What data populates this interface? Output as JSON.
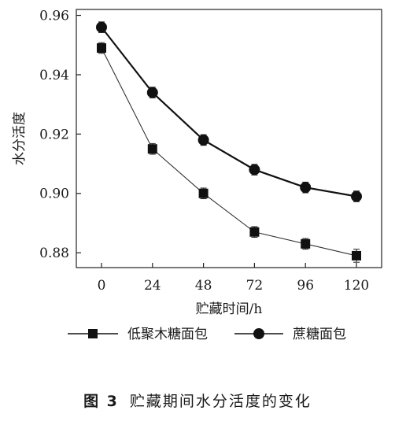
{
  "chart_data": {
    "type": "line",
    "title": "",
    "xlabel": "贮藏时间/h",
    "ylabel": "水分活度",
    "x": [
      0,
      24,
      48,
      72,
      96,
      120
    ],
    "xticks": [
      "0",
      "24",
      "48",
      "72",
      "96",
      "120"
    ],
    "yticks": [
      "0.88",
      "0.90",
      "0.92",
      "0.94",
      "0.96"
    ],
    "ylim": [
      0.875,
      0.962
    ],
    "grid": false,
    "legend_position": "bottom",
    "series": [
      {
        "name": "低聚木糖面包",
        "marker": "square",
        "values": [
          0.949,
          0.915,
          0.9,
          0.887,
          0.883,
          0.879
        ],
        "errors": [
          0.0018,
          0.0018,
          0.0018,
          0.0018,
          0.0018,
          0.0022
        ]
      },
      {
        "name": "蔗糖面包",
        "marker": "circle",
        "values": [
          0.956,
          0.934,
          0.918,
          0.908,
          0.902,
          0.899
        ],
        "errors": [
          0.0018,
          0.0018,
          0.0018,
          0.0018,
          0.0018,
          0.0018
        ]
      }
    ]
  },
  "caption": {
    "number": "图 3",
    "text": "贮藏期间水分活度的变化"
  }
}
